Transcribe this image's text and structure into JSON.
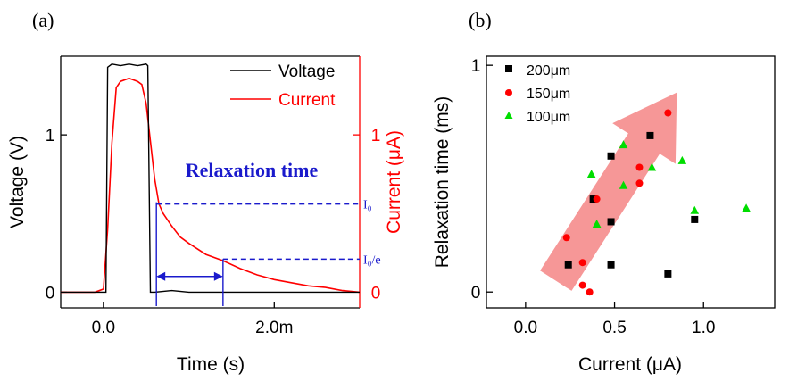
{
  "colors": {
    "voltage": "#000000",
    "current": "#ff0000",
    "annotation": "#1a1acc",
    "arrow": "#f48080",
    "s200": "#000000",
    "s150": "#ff0000",
    "s100": "#00dd00"
  },
  "chart_data": [
    {
      "type": "line",
      "panel_label": "(a)",
      "xlabel": "Time (s)",
      "ylabel_left": "Voltage (V)",
      "ylabel_right": "Current (μA)",
      "xlim": [
        -0.0005,
        0.003
      ],
      "ylim_left": [
        -0.1,
        1.5
      ],
      "ylim_right": [
        -0.1,
        1.5
      ],
      "x_ticks": [
        {
          "value": 0,
          "label": "0.0"
        },
        {
          "value": 0.002,
          "label": "2.0m"
        }
      ],
      "y_ticks_left": [
        {
          "value": 0,
          "label": "0"
        },
        {
          "value": 1,
          "label": "1"
        }
      ],
      "y_ticks_right": [
        {
          "value": 0,
          "label": "0"
        },
        {
          "value": 1,
          "label": "1"
        }
      ],
      "legend": {
        "position": "top-right",
        "entries": [
          "Voltage",
          "Current"
        ]
      },
      "series": [
        {
          "name": "Voltage",
          "axis": "left",
          "color_key": "voltage",
          "x": [
            -0.0005,
            0.0,
            3e-05,
            5e-05,
            0.0001,
            0.0002,
            0.0003,
            0.0004,
            0.0005,
            0.00052,
            0.00055,
            0.0006,
            0.0008,
            0.001,
            0.0015,
            0.002,
            0.0025,
            0.003
          ],
          "y": [
            0.0,
            0.0,
            0.0,
            1.43,
            1.45,
            1.44,
            1.45,
            1.44,
            1.45,
            1.44,
            0.0,
            0.0,
            0.01,
            0.0,
            0.0,
            0.0,
            0.0,
            0.0
          ]
        },
        {
          "name": "Current",
          "axis": "right",
          "color_key": "current",
          "x": [
            -0.0005,
            -0.0001,
            0.0,
            5e-05,
            0.0001,
            0.00015,
            0.0002,
            0.0003,
            0.0004,
            0.00045,
            0.0005,
            0.0006,
            0.00065,
            0.0007,
            0.0008,
            0.0009,
            0.001,
            0.0012,
            0.0014,
            0.0016,
            0.0018,
            0.002,
            0.0022,
            0.0024,
            0.0026,
            0.0028,
            0.003
          ],
          "y": [
            0.0,
            0.0,
            0.02,
            0.4,
            0.95,
            1.3,
            1.34,
            1.36,
            1.34,
            1.32,
            1.2,
            0.72,
            0.56,
            0.5,
            0.42,
            0.35,
            0.31,
            0.24,
            0.2,
            0.15,
            0.11,
            0.08,
            0.06,
            0.04,
            0.03,
            0.01,
            0.0
          ]
        }
      ],
      "annotations": {
        "title": "Relaxation time",
        "i0_label": "I₀",
        "i0e_label": "I₀/e",
        "i0_value": 0.56,
        "i0e_value": 0.21,
        "t_start": 0.00062,
        "t_end": 0.0014
      }
    },
    {
      "type": "scatter",
      "panel_label": "(b)",
      "xlabel": "Current (μA)",
      "ylabel": "Relaxation time (ms)",
      "xlim": [
        -0.22,
        1.4
      ],
      "ylim": [
        -0.07,
        1.04
      ],
      "x_ticks": [
        {
          "value": 0,
          "label": "0.0"
        },
        {
          "value": 0.5,
          "label": "0.5"
        },
        {
          "value": 1,
          "label": "1.0"
        }
      ],
      "y_ticks": [
        {
          "value": 0,
          "label": "0"
        },
        {
          "value": 1,
          "label": "1"
        }
      ],
      "legend": {
        "position": "top-left",
        "entries": [
          "200μm",
          "150μm",
          "100μm"
        ]
      },
      "series": [
        {
          "name": "200μm",
          "marker": "square",
          "color_key": "s200",
          "points": [
            [
              0.24,
              0.12
            ],
            [
              0.38,
              0.41
            ],
            [
              0.48,
              0.6
            ],
            [
              0.48,
              0.31
            ],
            [
              0.48,
              0.12
            ],
            [
              0.7,
              0.69
            ],
            [
              0.8,
              0.08
            ],
            [
              0.95,
              0.32
            ]
          ]
        },
        {
          "name": "150μm",
          "marker": "circle",
          "color_key": "s150",
          "points": [
            [
              0.23,
              0.24
            ],
            [
              0.32,
              0.13
            ],
            [
              0.32,
              0.03
            ],
            [
              0.36,
              0.0
            ],
            [
              0.4,
              0.41
            ],
            [
              0.64,
              0.55
            ],
            [
              0.64,
              0.48
            ],
            [
              0.8,
              0.79
            ]
          ]
        },
        {
          "name": "100μm",
          "marker": "triangle",
          "color_key": "s100",
          "points": [
            [
              0.37,
              0.52
            ],
            [
              0.4,
              0.3
            ],
            [
              0.55,
              0.65
            ],
            [
              0.55,
              0.47
            ],
            [
              0.71,
              0.55
            ],
            [
              0.88,
              0.58
            ],
            [
              0.95,
              0.36
            ],
            [
              1.24,
              0.37
            ]
          ]
        }
      ],
      "trend_arrow": {
        "from": [
          0.17,
          0.05
        ],
        "to": [
          0.85,
          0.88
        ]
      }
    }
  ]
}
